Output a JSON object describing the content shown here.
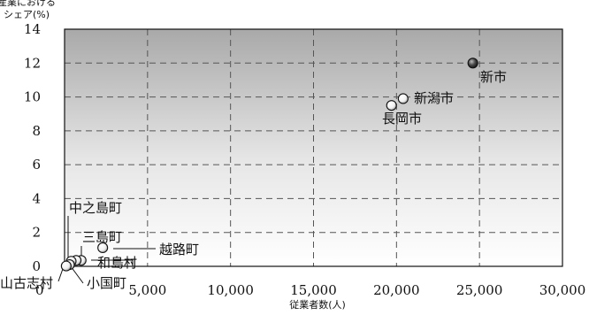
{
  "chart_data": {
    "type": "scatter",
    "title": "",
    "ylabel_lines": [
      "産業における",
      "シェア(%)"
    ],
    "xlabel": "従業者数(人)",
    "xlim": [
      0,
      30000
    ],
    "ylim": [
      0,
      14
    ],
    "x_ticks": [
      0,
      5000,
      10000,
      15000,
      20000,
      25000,
      30000
    ],
    "x_tick_labels": [
      "0",
      "5,000",
      "10,000",
      "15,000",
      "20,000",
      "25,000",
      "30,000"
    ],
    "y_ticks": [
      0,
      2,
      4,
      6,
      8,
      10,
      12,
      14
    ],
    "y_tick_labels": [
      "0",
      "2",
      "4",
      "6",
      "8",
      "10",
      "12",
      "14"
    ],
    "grid": true,
    "background": "vertical gradient, dark gray at top to white at bottom",
    "points": [
      {
        "label": "新市",
        "x": 24600,
        "y": 12.0,
        "fill": "dark"
      },
      {
        "label": "新潟市",
        "x": 20400,
        "y": 9.9,
        "fill": "light"
      },
      {
        "label": "長岡市",
        "x": 19700,
        "y": 9.5,
        "fill": "light"
      },
      {
        "label": "越路町",
        "x": 2300,
        "y": 1.1,
        "fill": "light"
      },
      {
        "label": "和島村",
        "x": 1000,
        "y": 0.35,
        "fill": "light"
      },
      {
        "label": "三島町",
        "x": 700,
        "y": 0.35,
        "fill": "light"
      },
      {
        "label": "中之島町",
        "x": 400,
        "y": 0.3,
        "fill": "light"
      },
      {
        "label": "小国町",
        "x": 300,
        "y": 0.1,
        "fill": "light"
      },
      {
        "label": "山古志村",
        "x": 100,
        "y": 0.02,
        "fill": "light"
      }
    ]
  }
}
